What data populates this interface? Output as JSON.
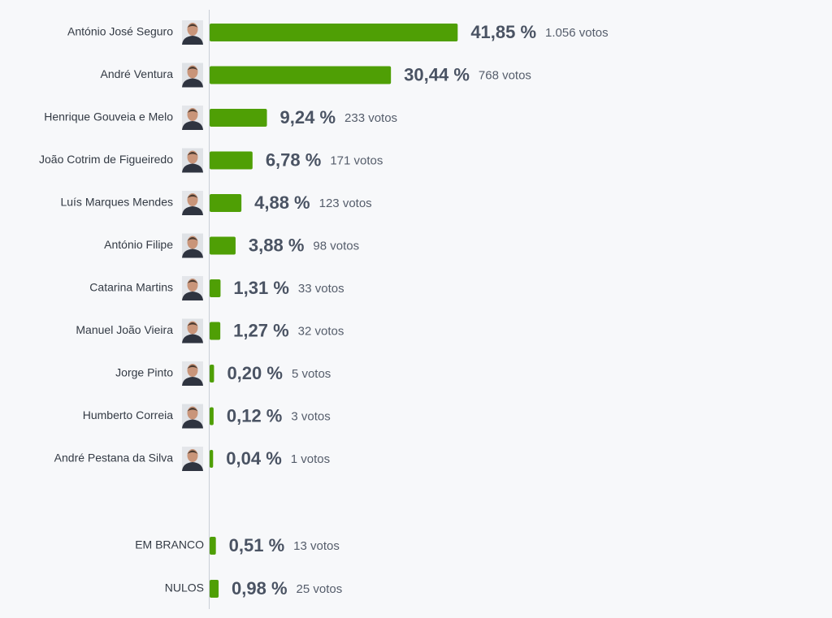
{
  "chart_data": [
    {
      "type": "bar",
      "color": "#4f9f05",
      "categories": [
        "António José Seguro",
        "André Ventura",
        "Henrique Gouveia e Melo",
        "João Cotrim de Figueiredo",
        "Luís Marques Mendes",
        "António Filipe",
        "Catarina Martins",
        "Manuel João Vieira",
        "Jorge Pinto",
        "Humberto Correia",
        "André Pestana da Silva"
      ],
      "values": [
        41.85,
        30.44,
        9.24,
        6.78,
        4.88,
        3.88,
        1.31,
        1.27,
        0.2,
        0.12,
        0.04
      ],
      "value_labels": [
        "41,85 %",
        "30,44 %",
        "9,24 %",
        "6,78 %",
        "4,88 %",
        "3,88 %",
        "1,31 %",
        "1,27 %",
        "0,20 %",
        "0,12 %",
        "0,04 %"
      ],
      "vote_labels": [
        "1.056 votos",
        "768 votos",
        "233 votos",
        "171 votos",
        "123 votos",
        "98 votos",
        "33 votos",
        "32 votos",
        "5 votos",
        "3 votos",
        "1 votos"
      ]
    },
    {
      "type": "bar",
      "color": "#4f9f05",
      "categories": [
        "EM BRANCO",
        "NULOS"
      ],
      "values": [
        0.51,
        0.98
      ],
      "value_labels": [
        "0,51 %",
        "0,98 %"
      ],
      "vote_labels": [
        "13 votos",
        "25 votos"
      ]
    }
  ]
}
